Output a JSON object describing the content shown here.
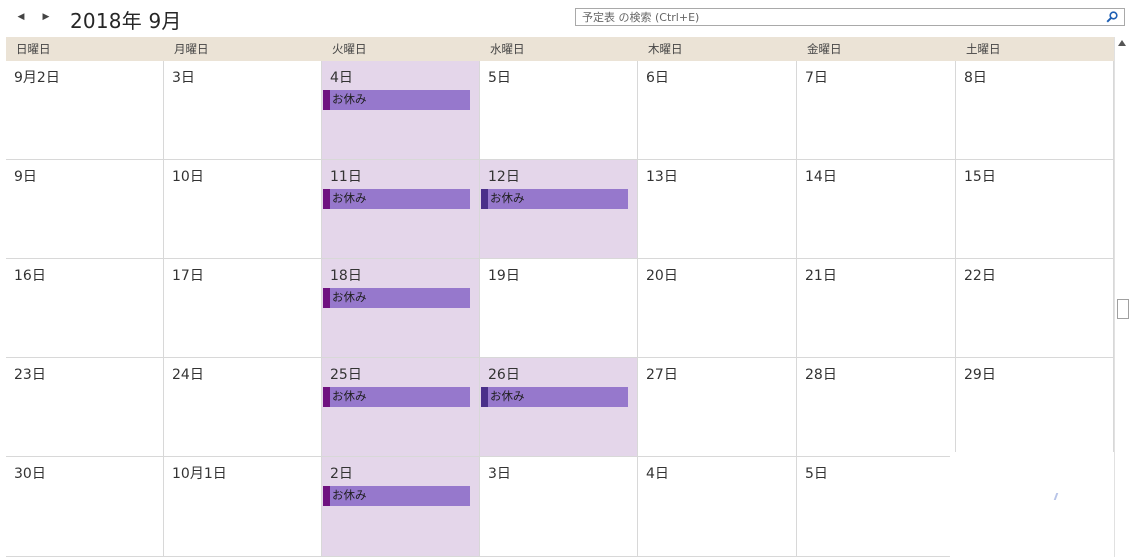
{
  "toolbar": {
    "title": "2018年 9月",
    "prev_icon": "chevron-left-icon",
    "next_icon": "chevron-right-icon"
  },
  "search": {
    "placeholder": "予定表 の検索 (Ctrl+E)",
    "icon": "search-icon"
  },
  "colors": {
    "header_bg": "#ebe3d6",
    "busy_bg": "#e4d6ea",
    "event_bg": "#9678cc",
    "event_stripe": "#6f1280",
    "event_stripe_alt": "#4a2f8a"
  },
  "weekdays": [
    "日曜日",
    "月曜日",
    "火曜日",
    "水曜日",
    "木曜日",
    "金曜日",
    "土曜日"
  ],
  "weeks": [
    [
      {
        "label": "9月2日"
      },
      {
        "label": "3日"
      },
      {
        "label": "4日",
        "event": "お休み"
      },
      {
        "label": "5日"
      },
      {
        "label": "6日"
      },
      {
        "label": "7日"
      },
      {
        "label": "8日"
      }
    ],
    [
      {
        "label": "9日"
      },
      {
        "label": "10日"
      },
      {
        "label": "11日",
        "event": "お休み"
      },
      {
        "label": "12日",
        "event": "お休み",
        "alt": true
      },
      {
        "label": "13日"
      },
      {
        "label": "14日"
      },
      {
        "label": "15日"
      }
    ],
    [
      {
        "label": "16日"
      },
      {
        "label": "17日"
      },
      {
        "label": "18日",
        "event": "お休み"
      },
      {
        "label": "19日"
      },
      {
        "label": "20日"
      },
      {
        "label": "21日"
      },
      {
        "label": "22日"
      }
    ],
    [
      {
        "label": "23日"
      },
      {
        "label": "24日"
      },
      {
        "label": "25日",
        "event": "お休み"
      },
      {
        "label": "26日",
        "event": "お休み",
        "alt": true
      },
      {
        "label": "27日"
      },
      {
        "label": "28日"
      },
      {
        "label": "29日"
      }
    ],
    [
      {
        "label": "30日"
      },
      {
        "label": "10月1日"
      },
      {
        "label": "2日",
        "event": "お休み"
      },
      {
        "label": "3日"
      },
      {
        "label": "4日"
      },
      {
        "label": "5日"
      },
      {
        "label": ""
      }
    ]
  ]
}
